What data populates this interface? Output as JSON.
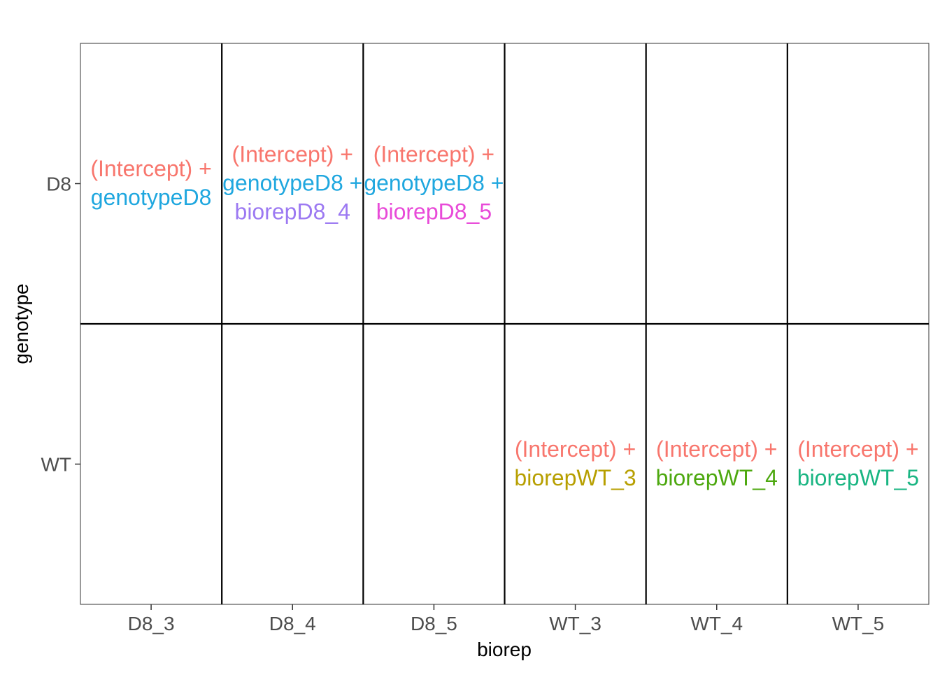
{
  "chart_data": {
    "type": "table",
    "xlabel": "biorep",
    "ylabel": "genotype",
    "x_categories": [
      "D8_3",
      "D8_4",
      "D8_5",
      "WT_3",
      "WT_4",
      "WT_5"
    ],
    "y_categories": [
      "D8",
      "WT"
    ],
    "grid": true,
    "legend": "none",
    "cells": [
      {
        "x": "D8_3",
        "y": "D8",
        "terms": [
          {
            "text": "(Intercept) +",
            "color": "#F8766D"
          },
          {
            "text": "genotypeD8",
            "color": "#1FA7DF"
          }
        ]
      },
      {
        "x": "D8_4",
        "y": "D8",
        "terms": [
          {
            "text": "(Intercept) +",
            "color": "#F8766D"
          },
          {
            "text": "genotypeD8 +",
            "color": "#1FA7DF"
          },
          {
            "text": "biorepD8_4",
            "color": "#9C79F2"
          }
        ]
      },
      {
        "x": "D8_5",
        "y": "D8",
        "terms": [
          {
            "text": "(Intercept) +",
            "color": "#F8766D"
          },
          {
            "text": "genotypeD8 +",
            "color": "#1FA7DF"
          },
          {
            "text": "biorepD8_5",
            "color": "#E84AD8"
          }
        ]
      },
      {
        "x": "WT_3",
        "y": "WT",
        "terms": [
          {
            "text": "(Intercept) +",
            "color": "#F8766D"
          },
          {
            "text": "biorepWT_3",
            "color": "#B79F00"
          }
        ]
      },
      {
        "x": "WT_4",
        "y": "WT",
        "terms": [
          {
            "text": "(Intercept) +",
            "color": "#F8766D"
          },
          {
            "text": "biorepWT_4",
            "color": "#4DA80F"
          }
        ]
      },
      {
        "x": "WT_5",
        "y": "WT",
        "terms": [
          {
            "text": "(Intercept) +",
            "color": "#F8766D"
          },
          {
            "text": "biorepWT_5",
            "color": "#19B582"
          }
        ]
      }
    ]
  }
}
